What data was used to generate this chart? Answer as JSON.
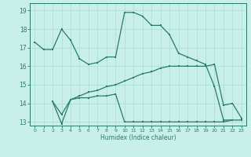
{
  "line1_x": [
    0,
    1,
    2,
    3,
    4,
    5,
    6,
    7,
    8,
    9,
    10,
    11,
    12,
    13,
    14,
    15,
    16,
    17,
    18,
    19,
    20,
    21,
    22
  ],
  "line1_y": [
    17.3,
    16.9,
    16.9,
    18.0,
    17.4,
    16.4,
    16.1,
    16.2,
    16.5,
    16.5,
    18.9,
    18.9,
    18.7,
    18.2,
    18.2,
    17.7,
    16.7,
    16.5,
    16.3,
    16.1,
    14.9,
    13.1,
    13.1
  ],
  "line2_x": [
    2,
    3,
    4,
    5,
    6,
    7,
    8,
    9,
    10,
    11,
    12,
    13,
    14,
    15,
    16,
    17,
    18,
    19,
    20,
    21,
    22,
    23
  ],
  "line2_y": [
    14.1,
    12.9,
    14.2,
    14.3,
    14.3,
    14.4,
    14.4,
    14.5,
    13.0,
    13.0,
    13.0,
    13.0,
    13.0,
    13.0,
    13.0,
    13.0,
    13.0,
    13.0,
    13.0,
    13.0,
    13.1,
    13.1
  ],
  "line3_x": [
    2,
    3,
    4,
    5,
    6,
    7,
    8,
    9,
    10,
    11,
    12,
    13,
    14,
    15,
    16,
    17,
    18,
    19,
    20,
    21,
    22,
    23
  ],
  "line3_y": [
    14.1,
    13.4,
    14.2,
    14.4,
    14.6,
    14.7,
    14.9,
    15.0,
    15.2,
    15.4,
    15.6,
    15.7,
    15.9,
    16.0,
    16.0,
    16.0,
    16.0,
    16.0,
    16.1,
    13.9,
    14.0,
    13.2
  ],
  "color": "#2a7a6a",
  "bg_color": "#c8f0e8",
  "grid_color": "#a8ddd0",
  "xlim": [
    -0.5,
    23.5
  ],
  "ylim": [
    12.8,
    19.4
  ],
  "yticks": [
    13,
    14,
    15,
    16,
    17,
    18,
    19
  ],
  "xticks": [
    0,
    1,
    2,
    3,
    4,
    5,
    6,
    7,
    8,
    9,
    10,
    11,
    12,
    13,
    14,
    15,
    16,
    17,
    18,
    19,
    20,
    21,
    22,
    23
  ],
  "xlabel": "Humidex (Indice chaleur)"
}
